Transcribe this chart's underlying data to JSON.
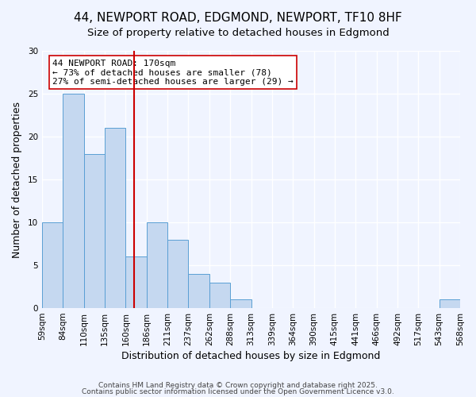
{
  "title": "44, NEWPORT ROAD, EDGMOND, NEWPORT, TF10 8HF",
  "subtitle": "Size of property relative to detached houses in Edgmond",
  "xlabel": "Distribution of detached houses by size in Edgmond",
  "ylabel": "Number of detached properties",
  "bin_edges": [
    59,
    84,
    110,
    135,
    160,
    186,
    211,
    237,
    262,
    288,
    313,
    339,
    364,
    390,
    415,
    441,
    466,
    492,
    517,
    543,
    568
  ],
  "bin_labels": [
    "59sqm",
    "84sqm",
    "110sqm",
    "135sqm",
    "160sqm",
    "186sqm",
    "211sqm",
    "237sqm",
    "262sqm",
    "288sqm",
    "313sqm",
    "339sqm",
    "364sqm",
    "390sqm",
    "415sqm",
    "441sqm",
    "466sqm",
    "492sqm",
    "517sqm",
    "543sqm",
    "568sqm"
  ],
  "counts": [
    10,
    25,
    18,
    21,
    6,
    10,
    8,
    4,
    3,
    1,
    0,
    0,
    0,
    0,
    0,
    0,
    0,
    0,
    0,
    1
  ],
  "bar_color": "#c5d8f0",
  "bar_edge_color": "#5a9fd4",
  "reference_line_x": 170,
  "reference_line_color": "#cc0000",
  "annotation_text": "44 NEWPORT ROAD: 170sqm\n← 73% of detached houses are smaller (78)\n27% of semi-detached houses are larger (29) →",
  "annotation_box_color": "#ffffff",
  "annotation_box_edge_color": "#cc0000",
  "ylim": [
    0,
    30
  ],
  "yticks": [
    0,
    5,
    10,
    15,
    20,
    25,
    30
  ],
  "background_color": "#f0f4ff",
  "plot_background_color": "#f0f4ff",
  "grid_color": "#ffffff",
  "footer_line1": "Contains HM Land Registry data © Crown copyright and database right 2025.",
  "footer_line2": "Contains public sector information licensed under the Open Government Licence v3.0.",
  "title_fontsize": 11,
  "subtitle_fontsize": 9.5,
  "xlabel_fontsize": 9,
  "ylabel_fontsize": 9,
  "tick_fontsize": 7.5,
  "annotation_fontsize": 8,
  "footer_fontsize": 6.5
}
